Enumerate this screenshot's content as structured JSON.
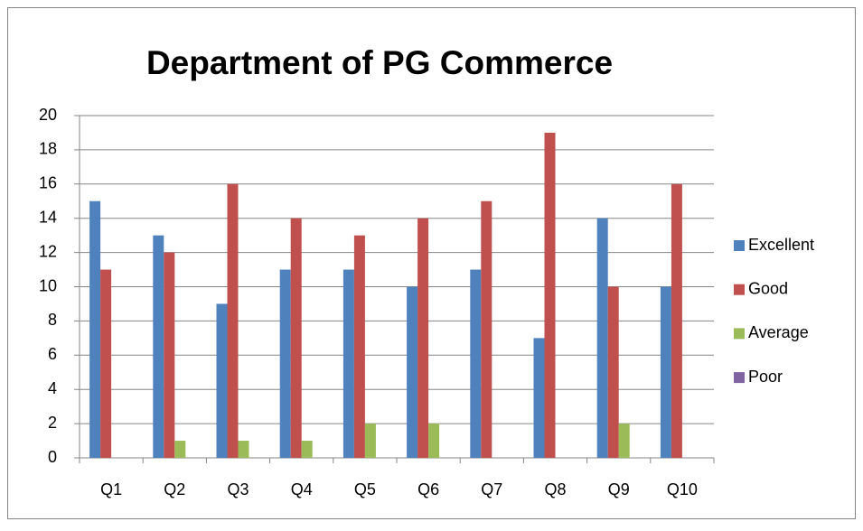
{
  "chart_data": {
    "type": "bar",
    "title": "Department of PG Commerce",
    "categories": [
      "Q1",
      "Q2",
      "Q3",
      "Q4",
      "Q5",
      "Q6",
      "Q7",
      "Q8",
      "Q9",
      "Q10"
    ],
    "series": [
      {
        "name": "Excellent",
        "color": "#4f81bd",
        "values": [
          15,
          13,
          9,
          11,
          11,
          10,
          11,
          7,
          14,
          10
        ]
      },
      {
        "name": "Good",
        "color": "#c0504d",
        "values": [
          11,
          12,
          16,
          14,
          13,
          14,
          15,
          19,
          10,
          16
        ]
      },
      {
        "name": "Average",
        "color": "#9bbb59",
        "values": [
          0,
          1,
          1,
          1,
          2,
          2,
          0,
          0,
          2,
          0
        ]
      },
      {
        "name": "Poor",
        "color": "#8064a2",
        "values": [
          0,
          0,
          0,
          0,
          0,
          0,
          0,
          0,
          0,
          0
        ]
      }
    ],
    "ylim": [
      0,
      20
    ],
    "yticks": [
      0,
      2,
      4,
      6,
      8,
      10,
      12,
      14,
      16,
      18,
      20
    ],
    "grid": true,
    "legend": "right"
  }
}
